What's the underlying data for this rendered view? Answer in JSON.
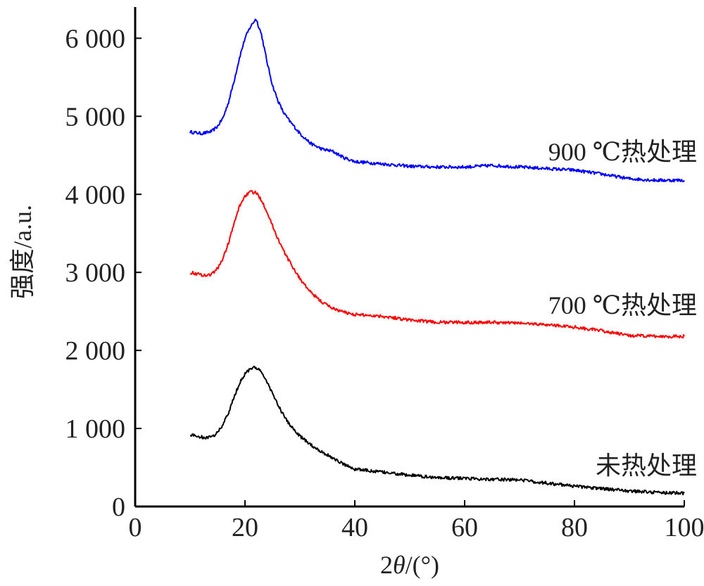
{
  "chart_data": {
    "type": "line",
    "title": "",
    "xlabel": "2θ/(°)",
    "xlabel_prefix": "2",
    "xlabel_symbol": "θ",
    "xlabel_suffix": "/(°)",
    "ylabel": "强度/a.u.",
    "xlim": [
      0,
      100
    ],
    "ylim": [
      0,
      6400
    ],
    "x_ticks": [
      0,
      20,
      40,
      60,
      80,
      100
    ],
    "x_tick_labels": [
      "0",
      "20",
      "40",
      "60",
      "80",
      "100"
    ],
    "y_ticks": [
      0,
      1000,
      2000,
      3000,
      4000,
      5000,
      6000
    ],
    "y_tick_labels": [
      "0",
      "1 000",
      "2 000",
      "3 000",
      "4 000",
      "5 000",
      "6 000"
    ],
    "grid": false,
    "legend": "inline labels at right end of each curve",
    "series": [
      {
        "name": "900 ℃热处理",
        "color": "#0000ff",
        "x": [
          10,
          12,
          13,
          14,
          15,
          16,
          17,
          18,
          19,
          20,
          21,
          22,
          23,
          24,
          25,
          26,
          27,
          28,
          30,
          32,
          34,
          36,
          38,
          40,
          45,
          50,
          55,
          60,
          65,
          70,
          75,
          80,
          85,
          90,
          95,
          100
        ],
        "y": [
          4800,
          4780,
          4790,
          4810,
          4870,
          4980,
          5180,
          5450,
          5750,
          6000,
          6150,
          6250,
          6050,
          5700,
          5400,
          5200,
          5050,
          4950,
          4780,
          4650,
          4580,
          4550,
          4470,
          4420,
          4390,
          4360,
          4350,
          4350,
          4370,
          4350,
          4330,
          4310,
          4260,
          4200,
          4180,
          4180
        ]
      },
      {
        "name": "700 ℃热处理",
        "color": "#ff0000",
        "x": [
          10,
          12,
          13,
          14,
          15,
          16,
          17,
          18,
          19,
          20,
          21,
          22,
          23,
          24,
          25,
          26,
          27,
          28,
          30,
          32,
          34,
          36,
          38,
          40,
          45,
          50,
          55,
          60,
          65,
          70,
          75,
          80,
          85,
          90,
          95,
          100
        ],
        "y": [
          3000,
          2970,
          2960,
          2980,
          3050,
          3180,
          3380,
          3620,
          3850,
          3980,
          4030,
          4020,
          3930,
          3780,
          3600,
          3430,
          3280,
          3150,
          2920,
          2740,
          2620,
          2540,
          2490,
          2460,
          2440,
          2390,
          2360,
          2360,
          2360,
          2350,
          2330,
          2300,
          2250,
          2190,
          2180,
          2180
        ]
      },
      {
        "name": "未热处理",
        "color": "#000000",
        "x": [
          10,
          12,
          13,
          14,
          15,
          16,
          17,
          18,
          19,
          20,
          21,
          22,
          23,
          24,
          25,
          26,
          27,
          28,
          30,
          32,
          34,
          36,
          38,
          40,
          45,
          50,
          55,
          60,
          65,
          70,
          75,
          80,
          85,
          90,
          95,
          100
        ],
        "y": [
          920,
          890,
          880,
          890,
          950,
          1050,
          1200,
          1400,
          1580,
          1700,
          1770,
          1780,
          1720,
          1600,
          1450,
          1300,
          1170,
          1060,
          900,
          790,
          700,
          620,
          540,
          480,
          440,
          400,
          370,
          360,
          350,
          340,
          300,
          260,
          230,
          200,
          180,
          170
        ]
      }
    ]
  }
}
